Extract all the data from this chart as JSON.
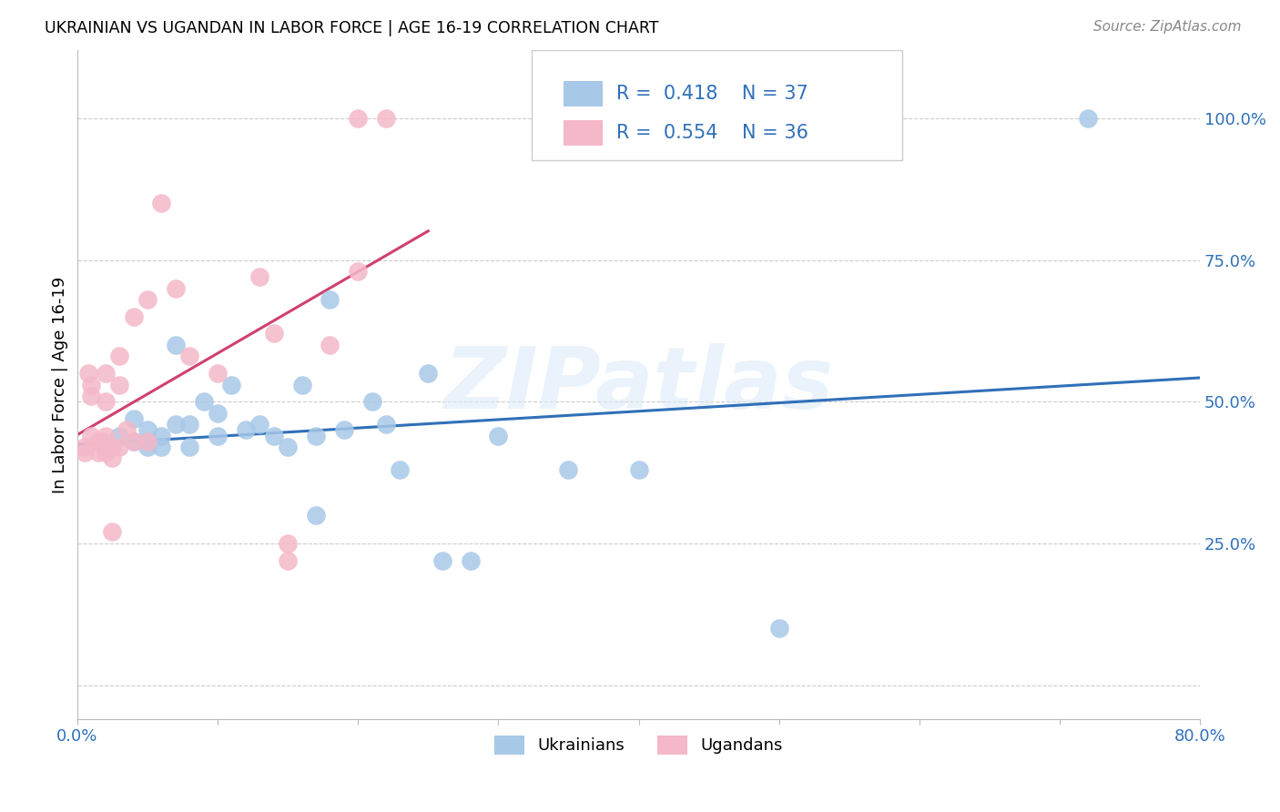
{
  "title": "UKRAINIAN VS UGANDAN IN LABOR FORCE | AGE 16-19 CORRELATION CHART",
  "source": "Source: ZipAtlas.com",
  "ylabel": "In Labor Force | Age 16-19",
  "xlim": [
    0.0,
    0.8
  ],
  "ylim": [
    -0.06,
    1.12
  ],
  "x_ticks": [
    0.0,
    0.1,
    0.2,
    0.3,
    0.4,
    0.5,
    0.6,
    0.7,
    0.8
  ],
  "x_tick_labels": [
    "0.0%",
    "",
    "",
    "",
    "",
    "",
    "",
    "",
    "80.0%"
  ],
  "y_ticks": [
    0.0,
    0.25,
    0.5,
    0.75,
    1.0
  ],
  "y_tick_labels": [
    "",
    "25.0%",
    "50.0%",
    "75.0%",
    "100.0%"
  ],
  "watermark": "ZIPatlas",
  "blue_color": "#a8c8e8",
  "pink_color": "#f4b8c8",
  "blue_line_color": "#3070b8",
  "pink_line_color": "#d04070",
  "legend_text_color": "#3070b8",
  "blue_x": [
    0.02,
    0.03,
    0.04,
    0.04,
    0.05,
    0.05,
    0.05,
    0.06,
    0.06,
    0.07,
    0.07,
    0.08,
    0.08,
    0.09,
    0.1,
    0.1,
    0.11,
    0.12,
    0.13,
    0.14,
    0.15,
    0.16,
    0.17,
    0.17,
    0.18,
    0.19,
    0.21,
    0.22,
    0.23,
    0.25,
    0.26,
    0.28,
    0.3,
    0.35,
    0.4,
    0.5,
    0.72
  ],
  "blue_y": [
    0.42,
    0.44,
    0.47,
    0.43,
    0.45,
    0.42,
    0.43,
    0.44,
    0.42,
    0.6,
    0.46,
    0.46,
    0.42,
    0.5,
    0.48,
    0.44,
    0.53,
    0.45,
    0.46,
    0.44,
    0.42,
    0.53,
    0.44,
    0.3,
    0.68,
    0.45,
    0.5,
    0.46,
    0.38,
    0.55,
    0.22,
    0.22,
    0.44,
    0.38,
    0.38,
    0.1,
    1.0
  ],
  "pink_x": [
    0.005,
    0.005,
    0.008,
    0.01,
    0.01,
    0.01,
    0.015,
    0.015,
    0.018,
    0.02,
    0.02,
    0.02,
    0.02,
    0.025,
    0.025,
    0.025,
    0.03,
    0.03,
    0.03,
    0.035,
    0.04,
    0.04,
    0.05,
    0.05,
    0.06,
    0.07,
    0.08,
    0.1,
    0.13,
    0.14,
    0.15,
    0.15,
    0.18,
    0.2,
    0.2,
    0.22
  ],
  "pink_y": [
    0.42,
    0.41,
    0.55,
    0.53,
    0.51,
    0.44,
    0.43,
    0.41,
    0.43,
    0.55,
    0.5,
    0.44,
    0.41,
    0.42,
    0.4,
    0.27,
    0.58,
    0.53,
    0.42,
    0.45,
    0.65,
    0.43,
    0.68,
    0.43,
    0.85,
    0.7,
    0.58,
    0.55,
    0.72,
    0.62,
    0.25,
    0.22,
    0.6,
    0.73,
    1.0,
    1.0
  ]
}
